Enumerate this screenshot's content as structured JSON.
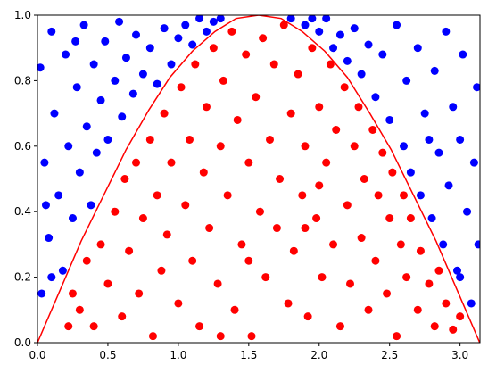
{
  "chart_data": {
    "type": "scatter",
    "xlim": [
      0,
      3.1416
    ],
    "ylim": [
      0,
      1
    ],
    "xticks": [
      {
        "value": 0,
        "label": "0.0"
      },
      0.5,
      {
        "value": 1,
        "label": "1.0"
      },
      1.5,
      {
        "value": 2,
        "label": "2.0"
      },
      2.5,
      {
        "value": 3,
        "label": "3.0"
      }
    ],
    "yticks": [
      {
        "value": 0,
        "label": "0.0"
      },
      0.2,
      0.4,
      0.6,
      0.8,
      {
        "value": 1,
        "label": "1.0"
      }
    ],
    "series": [
      {
        "type": "scatter",
        "color": "#0000ff",
        "x": [
          0.02,
          0.05,
          0.08,
          0.1,
          0.12,
          0.15,
          0.18,
          0.2,
          0.22,
          0.25,
          0.28,
          0.3,
          0.33,
          0.35,
          0.38,
          0.4,
          0.42,
          0.45,
          0.48,
          0.5,
          0.55,
          0.58,
          0.6,
          0.63,
          0.68,
          0.7,
          0.75,
          0.8,
          0.85,
          0.9,
          0.95,
          1.0,
          1.05,
          1.1,
          1.15,
          1.2,
          1.25,
          1.8,
          1.9,
          2.0,
          2.05,
          2.1,
          2.15,
          2.2,
          2.25,
          2.3,
          2.35,
          2.4,
          2.45,
          2.5,
          2.55,
          2.6,
          2.62,
          2.65,
          2.7,
          2.72,
          2.75,
          2.8,
          2.82,
          2.85,
          2.88,
          2.9,
          2.92,
          2.95,
          2.98,
          3.0,
          3.02,
          3.05,
          3.08,
          3.1,
          3.12,
          3.13,
          0.03,
          0.06,
          0.1,
          3.0,
          2.78,
          0.27,
          1.3,
          1.95
        ],
        "values": [
          0.84,
          0.55,
          0.32,
          0.95,
          0.7,
          0.45,
          0.22,
          0.88,
          0.6,
          0.38,
          0.78,
          0.52,
          0.97,
          0.66,
          0.42,
          0.85,
          0.58,
          0.74,
          0.92,
          0.62,
          0.8,
          0.98,
          0.69,
          0.87,
          0.76,
          0.94,
          0.82,
          0.9,
          0.79,
          0.96,
          0.85,
          0.93,
          0.97,
          0.91,
          0.99,
          0.95,
          0.98,
          0.99,
          0.97,
          0.95,
          0.99,
          0.9,
          0.94,
          0.86,
          0.96,
          0.82,
          0.91,
          0.75,
          0.88,
          0.68,
          0.97,
          0.6,
          0.8,
          0.52,
          0.9,
          0.45,
          0.7,
          0.38,
          0.83,
          0.58,
          0.3,
          0.95,
          0.48,
          0.72,
          0.22,
          0.62,
          0.88,
          0.4,
          0.12,
          0.55,
          0.78,
          0.3,
          0.15,
          0.42,
          0.2,
          0.2,
          0.62,
          0.92,
          0.99,
          0.99
        ]
      },
      {
        "type": "scatter",
        "color": "#ff0000",
        "x": [
          0.3,
          0.35,
          0.4,
          0.45,
          0.5,
          0.55,
          0.6,
          0.62,
          0.65,
          0.7,
          0.72,
          0.75,
          0.8,
          0.82,
          0.85,
          0.88,
          0.9,
          0.92,
          0.95,
          1.0,
          1.02,
          1.05,
          1.08,
          1.1,
          1.12,
          1.15,
          1.18,
          1.2,
          1.22,
          1.25,
          1.28,
          1.3,
          1.32,
          1.35,
          1.38,
          1.4,
          1.42,
          1.45,
          1.48,
          1.5,
          1.52,
          1.55,
          1.58,
          1.6,
          1.62,
          1.65,
          1.68,
          1.7,
          1.72,
          1.75,
          1.78,
          1.8,
          1.82,
          1.85,
          1.88,
          1.9,
          1.92,
          1.95,
          1.98,
          2.0,
          2.02,
          2.05,
          2.08,
          2.1,
          2.12,
          2.15,
          2.18,
          2.2,
          2.22,
          2.25,
          2.28,
          2.3,
          2.32,
          2.35,
          2.38,
          2.4,
          2.42,
          2.45,
          2.48,
          2.5,
          2.52,
          2.55,
          2.58,
          2.6,
          2.62,
          2.65,
          2.7,
          2.72,
          2.78,
          2.82,
          2.85,
          2.9,
          2.95,
          3.0,
          0.25,
          0.22,
          1.5,
          1.3,
          1.9,
          2.0
        ],
        "values": [
          0.1,
          0.25,
          0.05,
          0.3,
          0.18,
          0.4,
          0.08,
          0.5,
          0.28,
          0.55,
          0.15,
          0.38,
          0.62,
          0.02,
          0.45,
          0.22,
          0.7,
          0.33,
          0.55,
          0.12,
          0.78,
          0.42,
          0.62,
          0.25,
          0.85,
          0.05,
          0.52,
          0.72,
          0.35,
          0.9,
          0.18,
          0.6,
          0.8,
          0.45,
          0.95,
          0.1,
          0.68,
          0.3,
          0.88,
          0.55,
          0.02,
          0.75,
          0.4,
          0.93,
          0.2,
          0.62,
          0.85,
          0.35,
          0.5,
          0.97,
          0.12,
          0.7,
          0.28,
          0.82,
          0.45,
          0.6,
          0.08,
          0.9,
          0.38,
          0.72,
          0.2,
          0.55,
          0.85,
          0.3,
          0.65,
          0.05,
          0.78,
          0.42,
          0.18,
          0.6,
          0.72,
          0.32,
          0.5,
          0.1,
          0.65,
          0.25,
          0.45,
          0.58,
          0.15,
          0.38,
          0.52,
          0.02,
          0.3,
          0.45,
          0.2,
          0.38,
          0.1,
          0.28,
          0.18,
          0.05,
          0.22,
          0.12,
          0.04,
          0.08,
          0.15,
          0.05,
          0.25,
          0.02,
          0.35,
          0.48
        ]
      },
      {
        "type": "line",
        "color": "#ff0000",
        "x": [
          0,
          0.16,
          0.31,
          0.47,
          0.63,
          0.79,
          0.94,
          1.1,
          1.26,
          1.41,
          1.57,
          1.73,
          1.88,
          2.04,
          2.2,
          2.36,
          2.51,
          2.67,
          2.83,
          2.98,
          3.14
        ],
        "values": [
          0,
          0.16,
          0.31,
          0.45,
          0.59,
          0.71,
          0.81,
          0.89,
          0.95,
          0.99,
          1.0,
          0.99,
          0.95,
          0.89,
          0.81,
          0.7,
          0.59,
          0.45,
          0.31,
          0.16,
          0.0
        ]
      }
    ]
  }
}
